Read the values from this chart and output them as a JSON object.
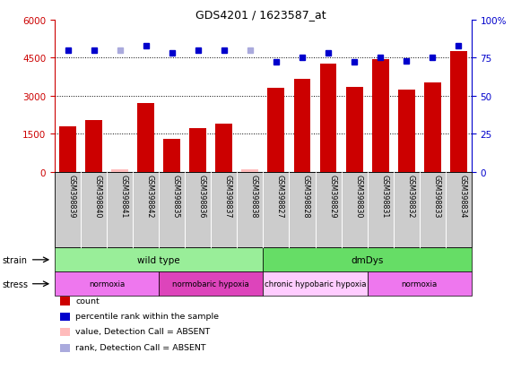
{
  "title": "GDS4201 / 1623587_at",
  "samples": [
    "GSM398839",
    "GSM398840",
    "GSM398841",
    "GSM398842",
    "GSM398835",
    "GSM398836",
    "GSM398837",
    "GSM398838",
    "GSM398827",
    "GSM398828",
    "GSM398829",
    "GSM398830",
    "GSM398831",
    "GSM398832",
    "GSM398833",
    "GSM398834"
  ],
  "count_values": [
    1800,
    2050,
    80,
    2700,
    1280,
    1700,
    1900,
    80,
    3300,
    3650,
    4250,
    3350,
    4450,
    3250,
    3500,
    4750
  ],
  "percentile_values": [
    80,
    80,
    80,
    83,
    78,
    80,
    80,
    80,
    72,
    75,
    78,
    72,
    75,
    73,
    75,
    83
  ],
  "absent_indices": [
    2,
    7
  ],
  "left_ylim": [
    0,
    6000
  ],
  "right_ylim": [
    0,
    100
  ],
  "left_yticks": [
    0,
    1500,
    3000,
    4500,
    6000
  ],
  "right_yticks": [
    0,
    25,
    50,
    75,
    100
  ],
  "dotted_lines": [
    1500,
    3000,
    4500
  ],
  "bar_color": "#cc0000",
  "absent_bar_color": "#ffbbbb",
  "dot_color": "#0000cc",
  "absent_dot_color": "#aaaadd",
  "xlabel_bg": "#cccccc",
  "strain_groups": [
    {
      "label": "wild type",
      "start": 0,
      "end": 8,
      "color": "#99ee99"
    },
    {
      "label": "dmDys",
      "start": 8,
      "end": 16,
      "color": "#66dd66"
    }
  ],
  "stress_groups": [
    {
      "label": "normoxia",
      "start": 0,
      "end": 4,
      "color": "#ee77ee"
    },
    {
      "label": "normobaric hypoxia",
      "start": 4,
      "end": 8,
      "color": "#dd44bb"
    },
    {
      "label": "chronic hypobaric hypoxia",
      "start": 8,
      "end": 12,
      "color": "#ffccff"
    },
    {
      "label": "normoxia",
      "start": 12,
      "end": 16,
      "color": "#ee77ee"
    }
  ],
  "legend_items": [
    {
      "label": "count",
      "color": "#cc0000"
    },
    {
      "label": "percentile rank within the sample",
      "color": "#0000cc"
    },
    {
      "label": "value, Detection Call = ABSENT",
      "color": "#ffbbbb"
    },
    {
      "label": "rank, Detection Call = ABSENT",
      "color": "#aaaadd"
    }
  ],
  "tick_color_left": "#cc0000",
  "tick_color_right": "#0000cc",
  "bg_color": "#ffffff"
}
